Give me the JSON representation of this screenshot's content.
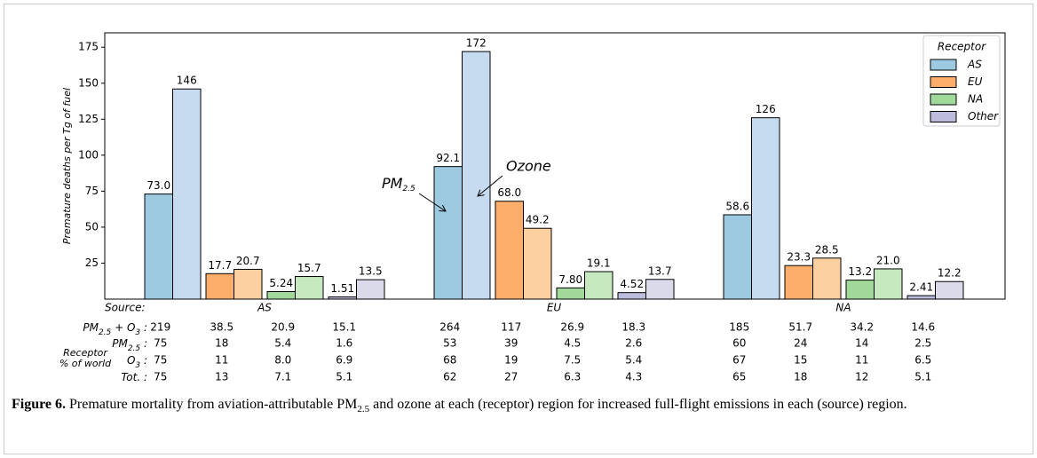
{
  "chart_data": {
    "type": "bar",
    "ylabel": "Premature deaths per Tg of fuel",
    "ylim": [
      0,
      185
    ],
    "yticks": [
      25,
      50,
      75,
      100,
      125,
      150,
      175
    ],
    "source_label": "Source:",
    "categories": [
      "AS",
      "EU",
      "NA"
    ],
    "legend_title": "Receptor",
    "legend": "upper right",
    "series": [
      {
        "name": "AS",
        "color": "#9ecae1",
        "ozone_color": "#c6dbef",
        "values": [
          73.0,
          92.1,
          58.6
        ],
        "value_labels": [
          "73.0",
          "92.1",
          "58.6"
        ],
        "ozone_values": [
          146,
          172,
          126
        ]
      },
      {
        "name": "EU",
        "color": "#fdae6b",
        "ozone_color": "#fdd0a2",
        "values": [
          17.7,
          68.0,
          23.3
        ],
        "value_labels": [
          "17.7",
          "68.0",
          "23.3"
        ],
        "ozone_values": [
          20.7,
          49.2,
          28.5
        ]
      },
      {
        "name": "NA",
        "color": "#a1d99b",
        "ozone_color": "#c7e9c0",
        "values": [
          5.24,
          7.8,
          13.2
        ],
        "value_labels": [
          "5.24",
          "7.80",
          "13.2"
        ],
        "ozone_values": [
          15.7,
          19.1,
          21.0
        ],
        "ozone_value_labels": [
          "15.7",
          "19.1",
          "21.0"
        ]
      },
      {
        "name": "Other",
        "color": "#bcbddc",
        "ozone_color": "#dadaeb",
        "values": [
          1.51,
          4.52,
          2.41
        ],
        "value_labels": [
          "1.51",
          "4.52",
          "2.41"
        ],
        "ozone_values": [
          13.5,
          13.7,
          12.2
        ]
      }
    ],
    "annotations": {
      "pm": [
        {
          "text": "PM"
        },
        {
          "text": "2.5",
          "sub": true
        }
      ],
      "ozone": "Ozone"
    }
  },
  "table": {
    "side_label": [
      "Receptor",
      "% of world"
    ],
    "highlight": [
      0,
      5,
      10
    ],
    "highlight_color": "#a52a2a",
    "rows": [
      {
        "label": [
          {
            "text": "PM"
          },
          {
            "text": "2.5",
            "sub": true
          },
          {
            "text": " + O"
          },
          {
            "text": "3",
            "sub": true
          },
          {
            "text": " :"
          }
        ],
        "cells": [
          "219",
          "38.5",
          "20.9",
          "15.1",
          "264",
          "117",
          "26.9",
          "18.3",
          "185",
          "51.7",
          "34.2",
          "14.6"
        ]
      },
      {
        "label": [
          {
            "text": "PM"
          },
          {
            "text": "2.5",
            "sub": true
          },
          {
            "text": " :"
          }
        ],
        "cells": [
          "75",
          "18",
          "5.4",
          "1.6",
          "53",
          "39",
          "4.5",
          "2.6",
          "60",
          "24",
          "14",
          "2.5"
        ]
      },
      {
        "label": [
          {
            "text": "O"
          },
          {
            "text": "3",
            "sub": true
          },
          {
            "text": " :"
          }
        ],
        "cells": [
          "75",
          "11",
          "8.0",
          "6.9",
          "68",
          "19",
          "7.5",
          "5.4",
          "67",
          "15",
          "11",
          "6.5"
        ]
      },
      {
        "label": [
          {
            "text": "Tot. :"
          }
        ],
        "cells": [
          "75",
          "13",
          "7.1",
          "5.1",
          "62",
          "27",
          "6.3",
          "4.3",
          "65",
          "18",
          "12",
          "5.1"
        ]
      }
    ]
  },
  "caption": [
    {
      "text": "Figure 6.",
      "bold": true
    },
    {
      "text": " Premature mortality from aviation-attributable PM"
    },
    {
      "text": "2.5",
      "sub": true
    },
    {
      "text": " and ozone at each (receptor) region for increased full-flight emissions in each (source) region."
    }
  ]
}
